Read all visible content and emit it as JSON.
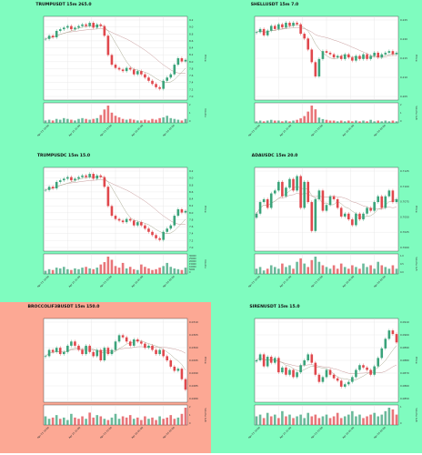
{
  "colors": {
    "panel_ok": "#7ffcbf",
    "panel_alert": "#fca894",
    "up": "#3aa37a",
    "down": "#e0474c",
    "ma_fast": "#a8a890",
    "ma_slow": "#c79a9a",
    "grid": "#dddddd"
  },
  "chart_data": [
    {
      "type": "candlestick",
      "title": "TRUMPUSDT 15m 265.0",
      "ylabel": "Price",
      "volume_label": "Volume",
      "panel": "ok",
      "ylim": [
        6.8,
        9.4
      ],
      "yticks": [
        "9.2",
        "9.0",
        "8.8",
        "8.6",
        "8.4",
        "8.2",
        "8.0",
        "7.8",
        "7.6",
        "7.4",
        "7.2",
        "7.0"
      ],
      "vol_ticks": [
        "2",
        "1",
        "0"
      ],
      "xticks": [
        "Apr 25 19:00",
        "Apr 25 21:00",
        "Apr 25 23:00",
        "Apr 26 01:00",
        "Apr 26 03:00"
      ],
      "close": [
        8.7,
        8.8,
        8.75,
        8.95,
        9.0,
        9.05,
        9.1,
        9.0,
        9.05,
        9.1,
        9.15,
        9.1,
        9.2,
        9.05,
        9.15,
        9.1,
        8.8,
        8.2,
        7.9,
        7.8,
        7.75,
        7.7,
        7.8,
        7.75,
        7.6,
        7.7,
        7.6,
        7.5,
        7.4,
        7.3,
        7.2,
        7.15,
        7.4,
        7.5,
        7.6,
        7.9,
        8.1,
        8.0,
        8.05
      ],
      "volume": [
        0.3,
        0.4,
        0.3,
        0.5,
        0.4,
        0.6,
        0.5,
        0.4,
        0.3,
        0.5,
        0.6,
        0.5,
        0.4,
        0.5,
        0.6,
        1.0,
        1.7,
        2.2,
        1.3,
        0.9,
        0.7,
        0.5,
        0.4,
        0.5,
        0.4,
        0.3,
        0.3,
        0.4,
        0.3,
        0.5,
        0.4,
        0.6,
        0.7,
        0.9,
        0.6,
        0.5,
        0.4,
        0.3,
        0.5
      ]
    },
    {
      "type": "candlestick",
      "title": "SHELLUSDT 15m 7.0",
      "ylabel": "Price",
      "volume_label": "Volume 1e6",
      "panel": "ok",
      "ylim": [
        0.2,
        0.2265
      ],
      "yticks": [
        "0.225",
        "0.220",
        "0.215",
        "0.210",
        "0.205"
      ],
      "vol_ticks": [
        "2",
        "1",
        "0"
      ],
      "xticks": [
        "Apr 25 19:00",
        "Apr 25 21:00",
        "Apr 25 23:00",
        "Apr 26 01:00",
        "Apr 26 03:00"
      ],
      "close": [
        0.2215,
        0.2225,
        0.2205,
        0.222,
        0.2235,
        0.2225,
        0.224,
        0.223,
        0.2245,
        0.2235,
        0.2245,
        0.224,
        0.221,
        0.2195,
        0.216,
        0.212,
        0.2075,
        0.213,
        0.2155,
        0.215,
        0.2145,
        0.2135,
        0.214,
        0.213,
        0.2145,
        0.2135,
        0.2125,
        0.214,
        0.213,
        0.2145,
        0.213,
        0.214,
        0.215,
        0.2135,
        0.2145,
        0.215,
        0.2155,
        0.2145,
        0.215
      ],
      "volume": [
        0.2,
        0.3,
        0.2,
        0.3,
        0.4,
        0.3,
        0.3,
        0.2,
        0.3,
        0.2,
        0.3,
        0.4,
        0.6,
        0.9,
        1.5,
        2.3,
        1.8,
        0.7,
        0.5,
        0.4,
        0.3,
        0.3,
        0.2,
        0.3,
        0.2,
        0.3,
        0.2,
        0.3,
        0.2,
        0.3,
        0.2,
        0.4,
        0.2,
        0.3,
        0.2,
        0.3,
        0.2,
        0.3,
        0.2
      ]
    },
    {
      "type": "candlestick",
      "title": "TRUMPUSDC 15m 15.0",
      "ylabel": "Price",
      "volume_label": "Volume",
      "panel": "ok",
      "ylim": [
        6.8,
        9.4
      ],
      "yticks": [
        "9.2",
        "9.0",
        "8.8",
        "8.6",
        "8.4",
        "8.2",
        "8.0",
        "7.8",
        "7.6",
        "7.4",
        "7.2",
        "7.0"
      ],
      "vol_ticks": [
        "30000",
        "25000",
        "20000",
        "15000",
        "10000",
        "5000",
        "0"
      ],
      "xticks": [
        "Apr 25 19:00",
        "Apr 25 21:00",
        "Apr 25 23:00",
        "Apr 26 01:00",
        "Apr 26 03:00"
      ],
      "close": [
        8.7,
        8.8,
        8.75,
        8.95,
        9.0,
        9.05,
        9.1,
        9.0,
        9.05,
        9.1,
        9.15,
        9.1,
        9.2,
        9.05,
        9.15,
        9.1,
        8.8,
        8.2,
        7.9,
        7.8,
        7.75,
        7.7,
        7.8,
        7.75,
        7.6,
        7.7,
        7.6,
        7.5,
        7.4,
        7.3,
        7.2,
        7.15,
        7.4,
        7.5,
        7.6,
        7.9,
        8.1,
        8.0,
        8.05
      ],
      "volume": [
        4000,
        6000,
        5000,
        8000,
        7000,
        9000,
        6000,
        5000,
        7000,
        6000,
        8000,
        9000,
        7000,
        6000,
        8000,
        12000,
        15000,
        22000,
        18000,
        10000,
        8000,
        14000,
        7000,
        9000,
        6000,
        5000,
        12000,
        9000,
        7000,
        5000,
        6000,
        8000,
        10000,
        14000,
        9000,
        7000,
        6000,
        5000,
        8000
      ]
    },
    {
      "type": "candlestick",
      "title": "ADAUSDC 15m 20.0",
      "ylabel": "Price",
      "volume_label": "Volume 1e5",
      "panel": "ok",
      "ylim": [
        0.7,
        0.7145
      ],
      "yticks": [
        "0.7125",
        "0.7100",
        "0.7075",
        "0.7050",
        "0.7025",
        "0.7000"
      ],
      "vol_ticks": [
        "1.0",
        "0.5",
        "0.0"
      ],
      "xticks": [
        "Apr 25 19:00",
        "Apr 25 21:00",
        "Apr 25 23:00",
        "Apr 26 01:00",
        "Apr 26 03:00"
      ],
      "close": [
        0.7065,
        0.7085,
        0.709,
        0.7075,
        0.71,
        0.7105,
        0.712,
        0.7095,
        0.711,
        0.7125,
        0.7105,
        0.713,
        0.7075,
        0.712,
        0.7085,
        0.7035,
        0.709,
        0.7105,
        0.707,
        0.708,
        0.7095,
        0.709,
        0.7075,
        0.706,
        0.7065,
        0.7055,
        0.7045,
        0.7065,
        0.7055,
        0.7065,
        0.7075,
        0.707,
        0.7085,
        0.7095,
        0.7075,
        0.7095,
        0.7105,
        0.7085,
        0.709
      ],
      "volume": [
        0.3,
        0.4,
        0.2,
        0.3,
        0.5,
        0.4,
        0.3,
        0.6,
        0.4,
        0.5,
        0.3,
        0.7,
        0.9,
        0.6,
        0.4,
        0.8,
        1.0,
        0.7,
        0.5,
        0.4,
        0.3,
        0.5,
        0.3,
        0.6,
        0.4,
        0.3,
        0.5,
        0.4,
        0.3,
        0.6,
        0.4,
        0.5,
        0.3,
        0.7,
        0.5,
        0.4,
        0.3,
        0.5,
        0.3
      ]
    },
    {
      "type": "candlestick",
      "title": "BROCCOLIF3BUSDT 15m 150.0",
      "ylabel": "Price",
      "volume_label": "Volume 1e6",
      "panel": "alert",
      "ylim": [
        0.0276,
        0.0316
      ],
      "yticks": [
        "0.0310",
        "0.0305",
        "0.0300",
        "0.0295",
        "0.0290",
        "0.0285",
        "0.0280"
      ],
      "vol_ticks": [
        "2",
        "1",
        "0"
      ],
      "xticks": [
        "Apr 25 19:00",
        "Apr 25 21:00",
        "Apr 25 23:00",
        "Apr 26 01:00",
        "Apr 26 03:00"
      ],
      "close": [
        0.0298,
        0.0301,
        0.03,
        0.0302,
        0.0299,
        0.03,
        0.0303,
        0.0305,
        0.0303,
        0.0301,
        0.0299,
        0.0303,
        0.03,
        0.0298,
        0.0301,
        0.0296,
        0.0302,
        0.0299,
        0.0301,
        0.0305,
        0.0308,
        0.0307,
        0.0305,
        0.0303,
        0.0306,
        0.0305,
        0.0304,
        0.0302,
        0.0303,
        0.0301,
        0.0299,
        0.0301,
        0.0298,
        0.0296,
        0.0293,
        0.0291,
        0.0292,
        0.0287,
        0.0282
      ],
      "volume": [
        0.7,
        0.5,
        0.6,
        0.8,
        0.5,
        0.6,
        0.4,
        0.9,
        0.6,
        0.5,
        0.7,
        0.5,
        1.0,
        0.6,
        0.8,
        0.7,
        0.5,
        0.4,
        0.6,
        0.9,
        0.5,
        0.7,
        0.6,
        0.8,
        0.5,
        0.6,
        0.4,
        0.7,
        0.5,
        0.6,
        0.4,
        0.7,
        0.5,
        0.6,
        0.8,
        0.5,
        0.6,
        0.9,
        1.4
      ]
    },
    {
      "type": "candlestick",
      "title": "SIRENUSDT 15m 15.0",
      "ylabel": "Price",
      "volume_label": "Volume 1e6",
      "panel": "ok",
      "ylim": [
        0.0845,
        0.0915
      ],
      "yticks": [
        "0.0910",
        "0.0900",
        "0.0890",
        "0.0880",
        "0.0870",
        "0.0860",
        "0.0850"
      ],
      "vol_ticks": [
        "1",
        "0"
      ],
      "xticks": [
        "Apr 25 19:00",
        "Apr 25 21:00",
        "Apr 25 23:00",
        "Apr 26 01:00",
        "Apr 26 03:00"
      ],
      "close": [
        0.088,
        0.0885,
        0.0875,
        0.0883,
        0.0878,
        0.0882,
        0.087,
        0.0874,
        0.0868,
        0.0872,
        0.0866,
        0.087,
        0.0876,
        0.088,
        0.0885,
        0.0878,
        0.0868,
        0.0862,
        0.0866,
        0.0872,
        0.0868,
        0.0865,
        0.0863,
        0.0858,
        0.086,
        0.0862,
        0.0866,
        0.0872,
        0.0876,
        0.0874,
        0.0872,
        0.0868,
        0.0875,
        0.0882,
        0.089,
        0.0898,
        0.0905,
        0.0902,
        0.0895
      ],
      "volume": [
        0.5,
        0.6,
        0.4,
        0.7,
        0.5,
        0.6,
        0.4,
        0.8,
        0.5,
        0.6,
        0.4,
        0.5,
        0.6,
        0.4,
        0.7,
        0.5,
        0.6,
        0.4,
        0.5,
        0.6,
        0.4,
        0.5,
        0.7,
        0.4,
        0.5,
        0.6,
        0.8,
        0.5,
        0.6,
        0.4,
        0.5,
        0.6,
        0.7,
        0.5,
        0.6,
        0.8,
        1.0,
        0.9,
        0.6
      ]
    }
  ]
}
